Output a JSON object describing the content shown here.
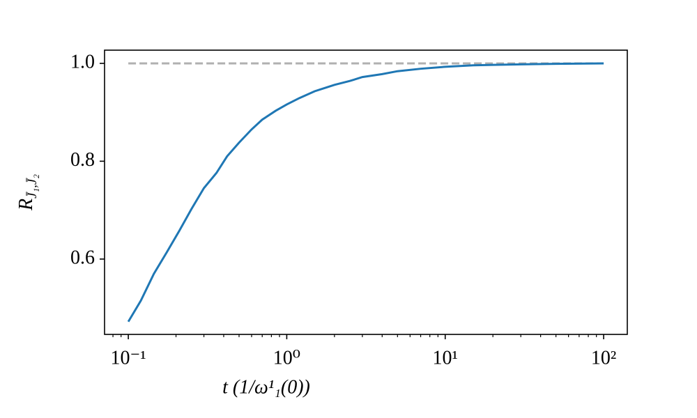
{
  "chart_data": {
    "type": "line",
    "x_label": "t (1/ω¹₁(0))",
    "y_label": {
      "main": "R",
      "sub": "J̄₁,J̄₂"
    },
    "x_scale": "log",
    "xlim": [
      0.0708,
      141
    ],
    "ylim": [
      0.446,
      1.027
    ],
    "xticks": [
      {
        "value": 0.1,
        "label": "10⁻¹"
      },
      {
        "value": 1,
        "label": "10⁰"
      },
      {
        "value": 10,
        "label": "10¹"
      },
      {
        "value": 100,
        "label": "10²"
      }
    ],
    "xminorticks": [
      0.08,
      0.09,
      0.2,
      0.3,
      0.4,
      0.5,
      0.6,
      0.7,
      0.8,
      0.9,
      2,
      3,
      4,
      5,
      6,
      7,
      8,
      9,
      20,
      30,
      40,
      50,
      60,
      70,
      80,
      90
    ],
    "yticks": [
      {
        "value": 0.6,
        "label": "0.6"
      },
      {
        "value": 0.8,
        "label": "0.8"
      },
      {
        "value": 1.0,
        "label": "1.0"
      }
    ],
    "series": [
      {
        "color": "#b0b0b0",
        "dashed": true,
        "x": [
          0.1,
          100
        ],
        "values": [
          1.0,
          1.0
        ]
      },
      {
        "color": "#1f77b4",
        "dashed": false,
        "x": [
          0.1,
          0.12,
          0.145,
          0.175,
          0.21,
          0.25,
          0.3,
          0.36,
          0.42,
          0.5,
          0.6,
          0.7,
          0.85,
          1,
          1.2,
          1.5,
          2,
          2.5,
          3,
          4,
          5,
          7,
          10,
          15,
          20,
          30,
          50,
          100
        ],
        "values": [
          0.472,
          0.515,
          0.57,
          0.614,
          0.658,
          0.702,
          0.745,
          0.776,
          0.81,
          0.838,
          0.865,
          0.885,
          0.903,
          0.916,
          0.929,
          0.943,
          0.956,
          0.964,
          0.972,
          0.978,
          0.984,
          0.989,
          0.993,
          0.996,
          0.997,
          0.998,
          0.999,
          1.0
        ]
      }
    ]
  }
}
